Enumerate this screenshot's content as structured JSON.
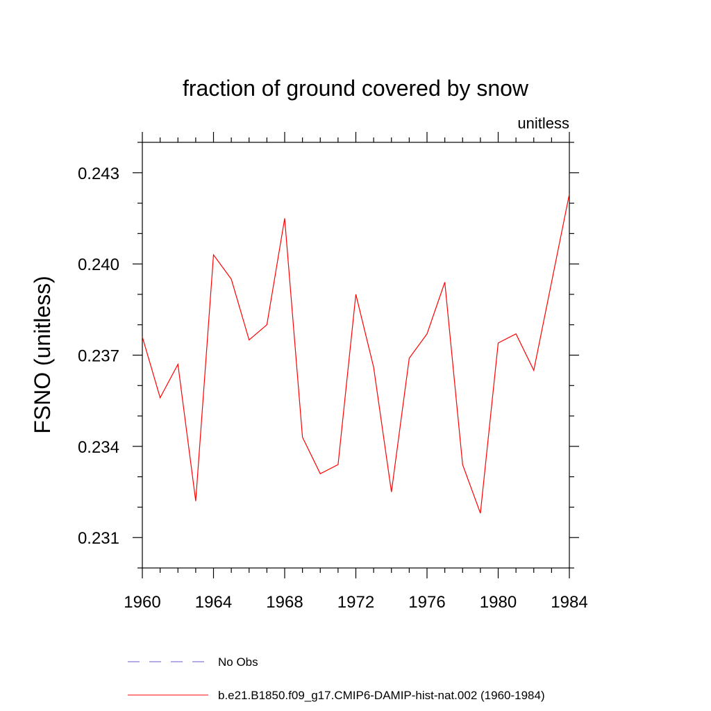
{
  "chart_data": {
    "type": "line",
    "title": "fraction of ground covered by snow",
    "subtitle": "unitless",
    "xlabel": "",
    "ylabel": "FSNO  (unitless)",
    "xlim": [
      1960,
      1984
    ],
    "ylim": [
      0.23,
      0.244
    ],
    "x_ticks": [
      1960,
      1964,
      1968,
      1972,
      1976,
      1980,
      1984
    ],
    "x_tick_labels": [
      "1960",
      "1964",
      "1968",
      "1972",
      "1976",
      "1980",
      "1984"
    ],
    "y_ticks": [
      0.231,
      0.234,
      0.237,
      0.24,
      0.243
    ],
    "y_tick_labels": [
      "0.231",
      "0.234",
      "0.237",
      "0.240",
      "0.243"
    ],
    "grid": false,
    "legend_position": "bottom",
    "legend": [
      {
        "label": "No Obs",
        "color": "#6a5acd",
        "style": "dashed"
      },
      {
        "label": "b.e21.B1850.f09_g17.CMIP6-DAMIP-hist-nat.002 (1960-1984)",
        "color": "#ff0000",
        "style": "solid"
      }
    ],
    "series": [
      {
        "color": "#ff0000",
        "x": [
          1960,
          1961,
          1962,
          1963,
          1964,
          1965,
          1966,
          1967,
          1968,
          1969,
          1970,
          1971,
          1972,
          1973,
          1974,
          1975,
          1976,
          1977,
          1978,
          1979,
          1980,
          1981,
          1982,
          1983,
          1984
        ],
        "y": [
          0.2376,
          0.2356,
          0.2367,
          0.2322,
          0.2403,
          0.2395,
          0.2375,
          0.238,
          0.2415,
          0.2343,
          0.2331,
          0.2334,
          0.239,
          0.2366,
          0.2325,
          0.2369,
          0.2377,
          0.2394,
          0.2334,
          0.2318,
          0.2374,
          0.2377,
          0.2365,
          0.2394,
          0.2423
        ]
      }
    ]
  }
}
